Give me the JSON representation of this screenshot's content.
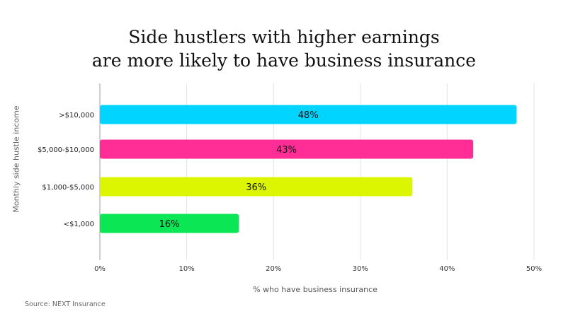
{
  "chart_data": {
    "type": "bar",
    "orientation": "horizontal",
    "title": [
      "Side hustlers with higher earnings",
      "are more likely to have business insurance"
    ],
    "xlabel": "% who have business insurance",
    "ylabel": "Monthly side hustle income",
    "categories": [
      ">$10,000",
      "$5,000-$10,000",
      "$1,000-$5,000",
      "<$1,000"
    ],
    "values": [
      48,
      43,
      36,
      16
    ],
    "data_labels": [
      "48%",
      "43%",
      "36%",
      "16%"
    ],
    "colors": [
      "#00d4ff",
      "#ff2d95",
      "#dcf500",
      "#0be655"
    ],
    "xlim": [
      0,
      50
    ],
    "xticks": [
      0,
      10,
      20,
      30,
      40,
      50
    ],
    "xtick_labels": [
      "0%",
      "10%",
      "20%",
      "30%",
      "40%",
      "50%"
    ],
    "grid": true,
    "source": "Source: NEXT Insurance"
  }
}
